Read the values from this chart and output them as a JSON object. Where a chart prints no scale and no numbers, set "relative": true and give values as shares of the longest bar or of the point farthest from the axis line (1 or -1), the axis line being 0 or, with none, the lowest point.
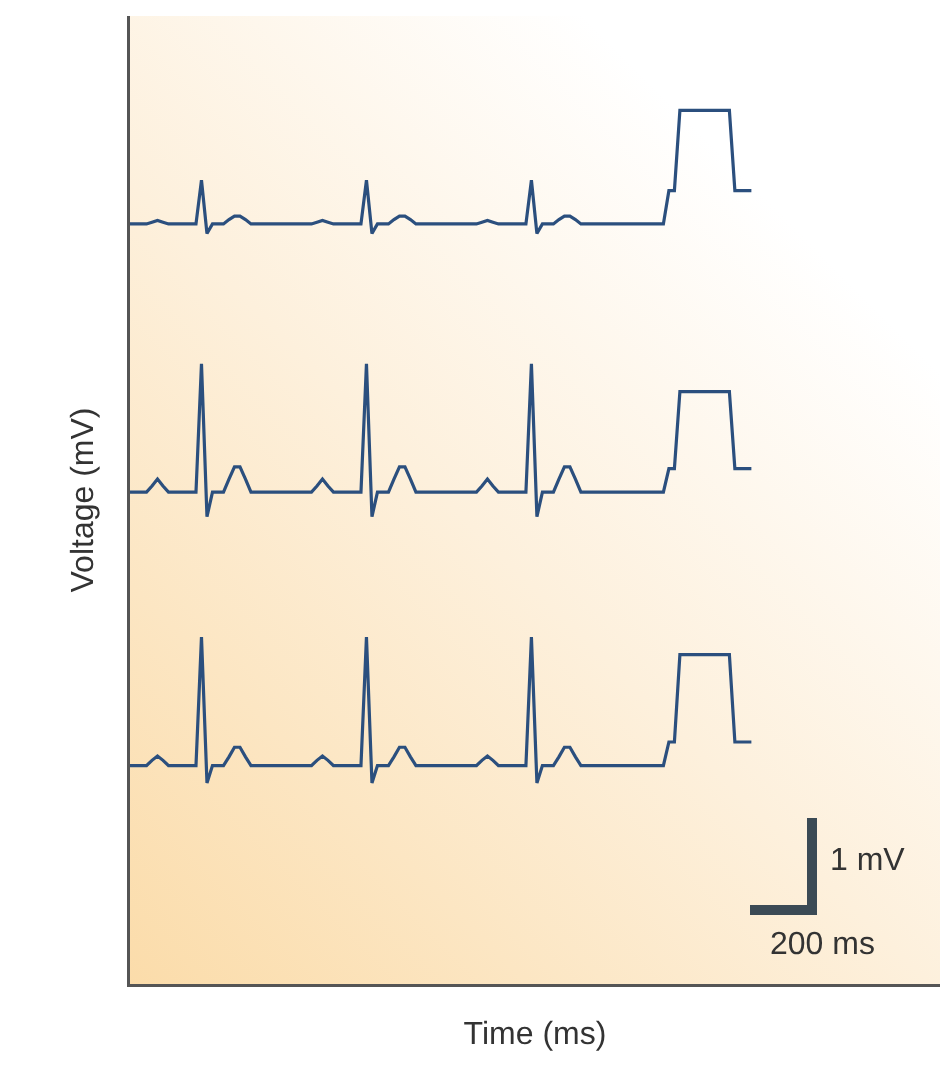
{
  "chart_data": {
    "type": "line",
    "relative": true,
    "xlabel": "Time (ms)",
    "ylabel": "Voltage (mV)",
    "line_style": "solid",
    "marker": "none",
    "annotations": [
      "1 mV",
      "200 ms"
    ],
    "categories": [
      null,
      null,
      null,
      null,
      null,
      null,
      null,
      null,
      null,
      null,
      null,
      null,
      null,
      null,
      null,
      null,
      null,
      null,
      null,
      null,
      null,
      null,
      null,
      null,
      null,
      null,
      null,
      null,
      null,
      null,
      null,
      null,
      null,
      null,
      null,
      null,
      null,
      null,
      null,
      null,
      null,
      null,
      null,
      null,
      null,
      null,
      null,
      null,
      null,
      null,
      null,
      null,
      null,
      null,
      null,
      null,
      null,
      null,
      null,
      null,
      null,
      null,
      null,
      null,
      null,
      null,
      null,
      null,
      null,
      null,
      null,
      null,
      null,
      null,
      null,
      null,
      null,
      null,
      null,
      null,
      null,
      null,
      null,
      null,
      null,
      null,
      null,
      null,
      null,
      null,
      null,
      null,
      null,
      null,
      null,
      null,
      null,
      null,
      null,
      null,
      null,
      null,
      null,
      null,
      null,
      null,
      null,
      null,
      null,
      null,
      null,
      null,
      null,
      null
    ],
    "series": [
      {
        "color": "#2b4f7e",
        "values": [
          0.87,
          0.87,
          0.87,
          0.87,
          0.872,
          0.874,
          0.872,
          0.87,
          0.87,
          0.87,
          0.87,
          0.87,
          0.87,
          0.92,
          0.859,
          0.87,
          0.87,
          0.87,
          0.875,
          0.879,
          0.879,
          0.875,
          0.87,
          0.87,
          0.87,
          0.87,
          0.87,
          0.87,
          0.87,
          0.87,
          0.87,
          0.87,
          0.87,
          0.87,
          0.872,
          0.874,
          0.872,
          0.87,
          0.87,
          0.87,
          0.87,
          0.87,
          0.87,
          0.92,
          0.859,
          0.87,
          0.87,
          0.87,
          0.875,
          0.879,
          0.879,
          0.875,
          0.87,
          0.87,
          0.87,
          0.87,
          0.87,
          0.87,
          0.87,
          0.87,
          0.87,
          0.87,
          0.87,
          0.87,
          0.872,
          0.874,
          0.872,
          0.87,
          0.87,
          0.87,
          0.87,
          0.87,
          0.87,
          0.92,
          0.859,
          0.87,
          0.87,
          0.87,
          0.875,
          0.879,
          0.879,
          0.875,
          0.87,
          0.87,
          0.87,
          0.87,
          0.87,
          0.87,
          0.87,
          0.87,
          0.87,
          0.87,
          0.87,
          0.87,
          0.87,
          0.87,
          0.87,
          0.87,
          0.908,
          0.908,
          1,
          1,
          1,
          1,
          1,
          1,
          1,
          1,
          1,
          1,
          0.908,
          0.908,
          0.908,
          0.908
        ]
      },
      {
        "color": "#2b4f7e",
        "values": [
          0.563,
          0.563,
          0.563,
          0.563,
          0.57,
          0.578,
          0.57,
          0.563,
          0.563,
          0.563,
          0.563,
          0.563,
          0.563,
          0.71,
          0.535,
          0.563,
          0.563,
          0.563,
          0.578,
          0.592,
          0.592,
          0.578,
          0.563,
          0.563,
          0.563,
          0.563,
          0.563,
          0.563,
          0.563,
          0.563,
          0.563,
          0.563,
          0.563,
          0.563,
          0.57,
          0.578,
          0.57,
          0.563,
          0.563,
          0.563,
          0.563,
          0.563,
          0.563,
          0.71,
          0.535,
          0.563,
          0.563,
          0.563,
          0.578,
          0.592,
          0.592,
          0.578,
          0.563,
          0.563,
          0.563,
          0.563,
          0.563,
          0.563,
          0.563,
          0.563,
          0.563,
          0.563,
          0.563,
          0.563,
          0.57,
          0.578,
          0.57,
          0.563,
          0.563,
          0.563,
          0.563,
          0.563,
          0.563,
          0.71,
          0.535,
          0.563,
          0.563,
          0.563,
          0.578,
          0.592,
          0.592,
          0.578,
          0.563,
          0.563,
          0.563,
          0.563,
          0.563,
          0.563,
          0.563,
          0.563,
          0.563,
          0.563,
          0.563,
          0.563,
          0.563,
          0.563,
          0.563,
          0.563,
          0.59,
          0.59,
          0.678,
          0.678,
          0.678,
          0.678,
          0.678,
          0.678,
          0.678,
          0.678,
          0.678,
          0.678,
          0.59,
          0.59,
          0.59,
          0.59
        ]
      },
      {
        "color": "#2b4f7e",
        "values": [
          0.25,
          0.25,
          0.25,
          0.25,
          0.256,
          0.261,
          0.256,
          0.25,
          0.25,
          0.25,
          0.25,
          0.25,
          0.25,
          0.397,
          0.23,
          0.25,
          0.25,
          0.25,
          0.26,
          0.271,
          0.271,
          0.26,
          0.25,
          0.25,
          0.25,
          0.25,
          0.25,
          0.25,
          0.25,
          0.25,
          0.25,
          0.25,
          0.25,
          0.25,
          0.256,
          0.261,
          0.256,
          0.25,
          0.25,
          0.25,
          0.25,
          0.25,
          0.25,
          0.397,
          0.23,
          0.25,
          0.25,
          0.25,
          0.26,
          0.271,
          0.271,
          0.26,
          0.25,
          0.25,
          0.25,
          0.25,
          0.25,
          0.25,
          0.25,
          0.25,
          0.25,
          0.25,
          0.25,
          0.25,
          0.256,
          0.261,
          0.256,
          0.25,
          0.25,
          0.25,
          0.25,
          0.25,
          0.25,
          0.397,
          0.23,
          0.25,
          0.25,
          0.25,
          0.26,
          0.271,
          0.271,
          0.26,
          0.25,
          0.25,
          0.25,
          0.25,
          0.25,
          0.25,
          0.25,
          0.25,
          0.25,
          0.25,
          0.25,
          0.25,
          0.25,
          0.25,
          0.25,
          0.25,
          0.277,
          0.277,
          0.377,
          0.377,
          0.377,
          0.377,
          0.377,
          0.377,
          0.377,
          0.377,
          0.377,
          0.377,
          0.277,
          0.277,
          0.277,
          0.277
        ]
      }
    ]
  }
}
